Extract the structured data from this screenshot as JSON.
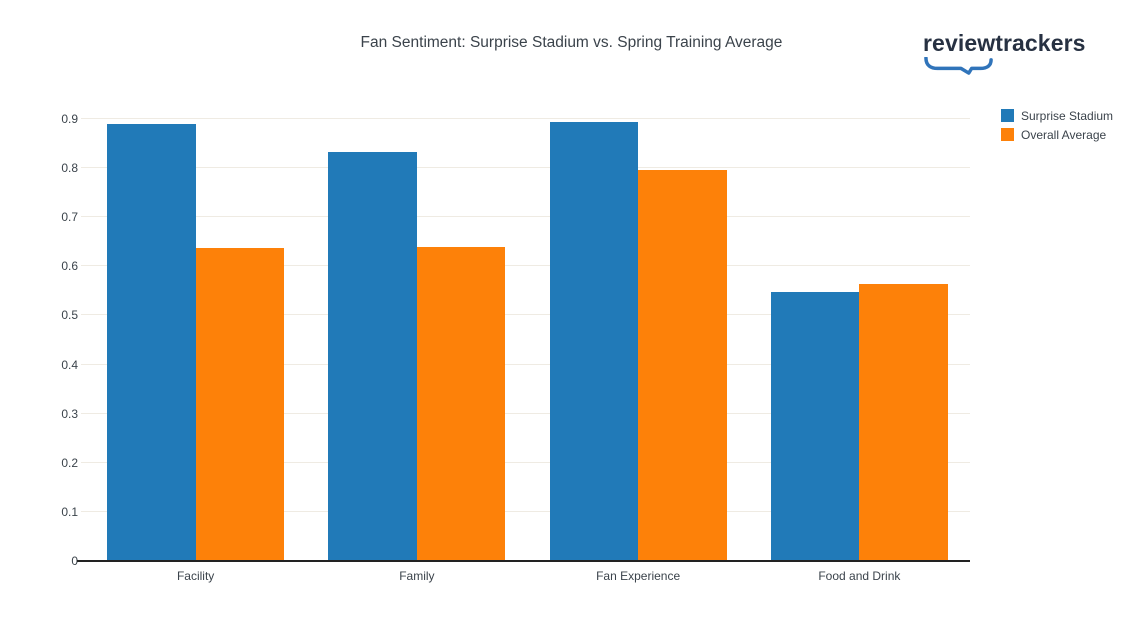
{
  "logo": {
    "text": "reviewtrackers"
  },
  "colors": {
    "blue": "#217ab8",
    "orange": "#fd8109",
    "logo_text": "#273142",
    "logo_swoosh": "#3074ba",
    "gridline": "#efebe3",
    "axis": "#222222",
    "text": "#3b434b"
  },
  "chart_data": {
    "type": "bar",
    "title": "Fan Sentiment: Surprise Stadium vs. Spring Training Average",
    "categories": [
      "Facility",
      "Family",
      "Fan Experience",
      "Food and Drink"
    ],
    "series": [
      {
        "name": "Surprise Stadium",
        "color": "#217ab8",
        "values": [
          0.89,
          0.833,
          0.893,
          0.548
        ]
      },
      {
        "name": "Overall Average",
        "color": "#fd8109",
        "values": [
          0.637,
          0.64,
          0.797,
          0.564
        ]
      }
    ],
    "xlabel": "",
    "ylabel": "",
    "ylim": [
      0,
      0.9
    ],
    "yticks": [
      0,
      0.1,
      0.2,
      0.3,
      0.4,
      0.5,
      0.6,
      0.7,
      0.8,
      0.9
    ],
    "grid": true,
    "legend_position": "top-right"
  }
}
